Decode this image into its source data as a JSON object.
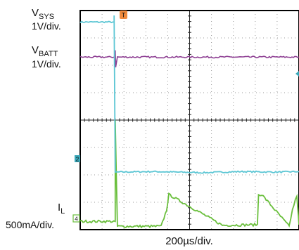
{
  "chart_data": {
    "type": "line",
    "labels": {
      "vsys_main": "V",
      "vsys_sub": "SYS",
      "vsys_scale": "1V/div.",
      "vbatt_main": "V",
      "vbatt_sub": "BATT",
      "vbatt_scale": "1V/div.",
      "il_main": "I",
      "il_sub": "L",
      "il_scale": "500mA/div."
    },
    "xlabel": "200µs/div.",
    "grid": true,
    "x_divisions": 10,
    "y_divisions": 8,
    "trigger_marker": "T",
    "channel_markers": {
      "ch2": "2",
      "ch4": "4"
    },
    "colors": {
      "vsys": "#5cc6d4",
      "vbatt": "#8e3f93",
      "il": "#6abf3c",
      "grid": "#9a9a9a",
      "frame": "#000000",
      "trigger": "#f08a3c"
    },
    "series": [
      {
        "name": "VSYS",
        "unit_per_div": "1V/div.",
        "points_div": [
          [
            0,
            7.58
          ],
          [
            1.55,
            7.58
          ],
          [
            1.55,
            7.8
          ],
          [
            1.6,
            2.1
          ],
          [
            1.65,
            2.1
          ],
          [
            3.3,
            2.12
          ],
          [
            5.6,
            2.08
          ],
          [
            7.4,
            2.12
          ],
          [
            9.0,
            2.1
          ],
          [
            10,
            2.12
          ]
        ]
      },
      {
        "name": "VBATT",
        "unit_per_div": "1V/div.",
        "points_div": [
          [
            0,
            6.3
          ],
          [
            1.6,
            6.3
          ],
          [
            1.6,
            6.55
          ],
          [
            1.62,
            5.95
          ],
          [
            1.7,
            6.3
          ],
          [
            10,
            6.3
          ]
        ]
      },
      {
        "name": "IL",
        "unit_per_div": "500mA/div.",
        "points_div": [
          [
            0,
            0.3
          ],
          [
            1.6,
            0.3
          ],
          [
            1.6,
            3.95
          ],
          [
            1.7,
            0.12
          ],
          [
            3.7,
            0.12
          ],
          [
            3.95,
            0.72
          ],
          [
            4.05,
            1.28
          ],
          [
            6.5,
            0.16
          ],
          [
            8.1,
            0.18
          ],
          [
            8.15,
            1.28
          ],
          [
            8.3,
            1.28
          ],
          [
            9.55,
            0.12
          ],
          [
            9.7,
            0.72
          ],
          [
            9.9,
            1.25
          ],
          [
            10,
            0.18
          ]
        ]
      }
    ]
  }
}
